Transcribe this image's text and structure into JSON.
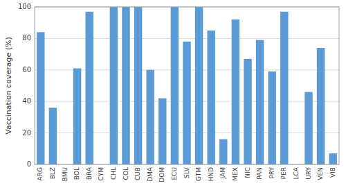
{
  "chart_data": {
    "type": "bar",
    "ylabel": "Vaccination coverage (%)",
    "categories": [
      "ARG",
      "BLZ",
      "BMU",
      "BOL",
      "BRA",
      "CYM",
      "CHL",
      "COL",
      "CUB",
      "DMA",
      "DOM",
      "ECU",
      "SLV",
      "GTM",
      "HND",
      "JAM",
      "MEX",
      "NIC",
      "PAN",
      "PRY",
      "PER",
      "LCA",
      "URY",
      "VEN",
      "VIB"
    ],
    "values": [
      84,
      36,
      0,
      61,
      97,
      0,
      100,
      100,
      100,
      60,
      42,
      100,
      78,
      100,
      85,
      16,
      92,
      67,
      79,
      59,
      97,
      0,
      46,
      74,
      7
    ],
    "color": "#5b9bd5",
    "ylim": [
      0,
      100
    ],
    "yticks": [
      0,
      20,
      40,
      60,
      80,
      100
    ],
    "grid": true
  }
}
